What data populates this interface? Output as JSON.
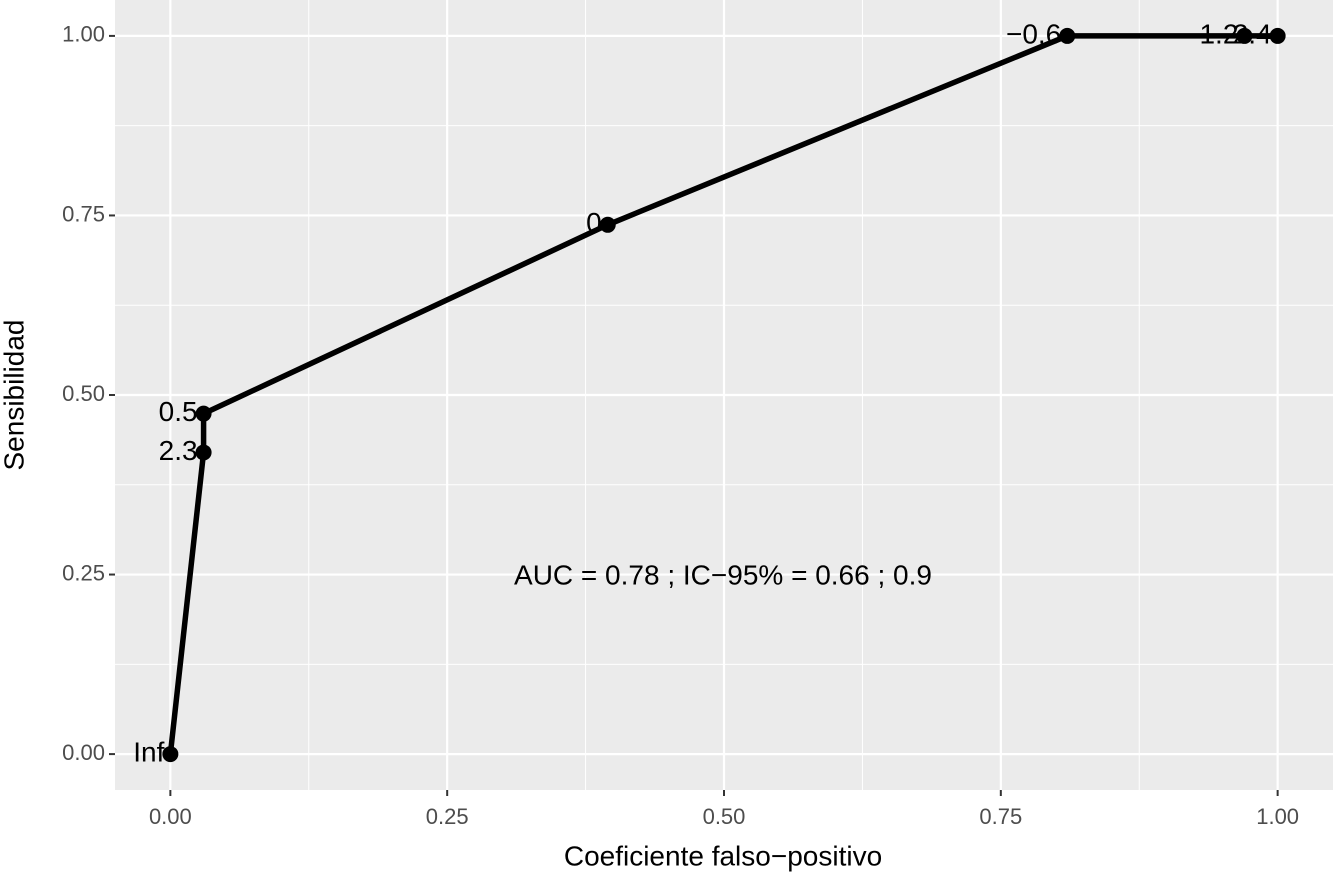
{
  "chart_data": {
    "type": "line",
    "x_label": "Coeficiente falso−positivo",
    "y_label": "Sensibilidad",
    "annotation": "AUC =  0.78 ;  IC−95% =  0.66 ; 0.9",
    "x": [
      0,
      0.03,
      0.03,
      0.395,
      0.81,
      0.97,
      1
    ],
    "series": [
      {
        "color": "#000000",
        "values": [
          0,
          0.42,
          0.474,
          0.737,
          1,
          1,
          1
        ],
        "value_labels": [
          "Inf",
          "2.3",
          "0.5",
          "0",
          "−0.6",
          "1.2",
          "2.4"
        ]
      }
    ],
    "xlim": [
      -0.05,
      1.05
    ],
    "ylim": [
      -0.05,
      1.05
    ],
    "xticks": [
      {
        "value": 0,
        "label": "0.00"
      },
      {
        "value": 0.25,
        "label": "0.25"
      },
      {
        "value": 0.5,
        "label": "0.50"
      },
      {
        "value": 0.75,
        "label": "0.75"
      },
      {
        "value": 1,
        "label": "1.00"
      }
    ],
    "yticks": [
      {
        "value": 0,
        "label": "0.00"
      },
      {
        "value": 0.25,
        "label": "0.25"
      },
      {
        "value": 0.5,
        "label": "0.50"
      },
      {
        "value": 0.75,
        "label": "0.75"
      },
      {
        "value": 1,
        "label": "1.00"
      }
    ],
    "grid": true
  }
}
